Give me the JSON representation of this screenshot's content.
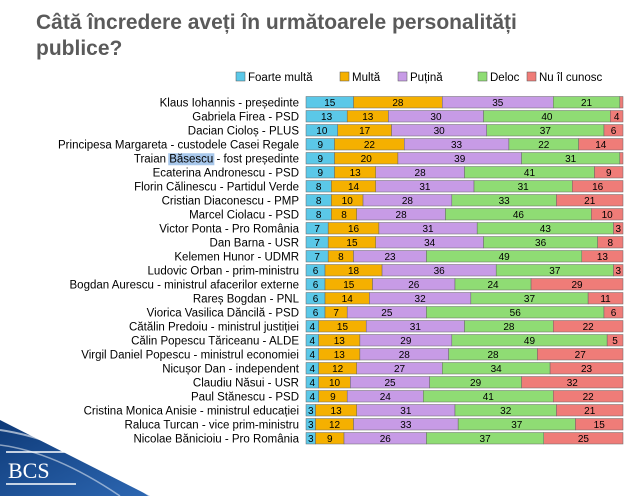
{
  "page": {
    "title": "Câtă încredere aveți în următoarele personalități publice?"
  },
  "logo": {
    "text": "BCS"
  },
  "chart_data": {
    "type": "bar",
    "orientation": "horizontal",
    "stacked": true,
    "title": "Câtă încredere aveți în următoarele personalități publice?",
    "xlim": [
      0,
      100
    ],
    "legend_position": "top",
    "categories": [
      "Klaus Iohannis - președinte",
      "Gabriela Firea - PSD",
      "Dacian Cioloș - PLUS",
      "Principesa Margareta - custodele Casei Regale",
      "Traian Băsescu - fost președinte",
      "Ecaterina Andronescu - PSD",
      "Florin Călinescu - Partidul Verde",
      "Cristian Diaconescu - PMP",
      "Marcel Ciolacu - PSD",
      "Victor Ponta - Pro România",
      "Dan Barna - USR",
      "Kelemen Hunor - UDMR",
      "Ludovic Orban - prim-ministru",
      "Bogdan Aurescu - ministrul afacerilor externe",
      "Rareș Bogdan - PNL",
      "Viorica Vasilica Dăncilă - PSD",
      "Cătălin Predoiu - ministrul justiției",
      "Călin Popescu Tăriceanu - ALDE",
      "Virgil Daniel Popescu - ministrul economiei",
      "Nicușor Dan - independent",
      "Claudiu Năsui - USR",
      "Paul Stănescu - PSD",
      "Cristina Monica Anisie - ministrul educației",
      "Raluca Turcan - vice prim-ministru",
      "Nicolae Bănicioiu - Pro România"
    ],
    "series": [
      {
        "name": "Foarte multă",
        "color": "#5bc8e8",
        "values": [
          15,
          13,
          10,
          9,
          9,
          9,
          8,
          8,
          8,
          7,
          7,
          7,
          6,
          6,
          6,
          6,
          4,
          4,
          4,
          4,
          4,
          4,
          3,
          3,
          3
        ]
      },
      {
        "name": "Multă",
        "color": "#f5b000",
        "values": [
          28,
          13,
          17,
          22,
          20,
          13,
          14,
          10,
          8,
          16,
          15,
          8,
          18,
          15,
          14,
          7,
          15,
          13,
          13,
          12,
          10,
          9,
          13,
          12,
          9
        ]
      },
      {
        "name": "Puțină",
        "color": "#c79be6",
        "values": [
          35,
          30,
          30,
          33,
          39,
          28,
          31,
          28,
          28,
          31,
          34,
          23,
          36,
          26,
          32,
          25,
          31,
          29,
          28,
          27,
          25,
          24,
          31,
          33,
          26
        ]
      },
      {
        "name": "Deloc",
        "color": "#8fdc74",
        "values": [
          21,
          40,
          37,
          22,
          31,
          41,
          31,
          33,
          46,
          43,
          36,
          49,
          37,
          24,
          37,
          56,
          28,
          49,
          28,
          34,
          29,
          41,
          32,
          37,
          37
        ]
      },
      {
        "name": "Nu îl cunosc",
        "color": "#ef7c78",
        "values": [
          1,
          4,
          6,
          14,
          1,
          9,
          16,
          21,
          10,
          3,
          8,
          13,
          3,
          29,
          11,
          6,
          22,
          5,
          27,
          23,
          32,
          22,
          21,
          15,
          25
        ]
      }
    ],
    "highlighted_text": "Băsescu"
  }
}
